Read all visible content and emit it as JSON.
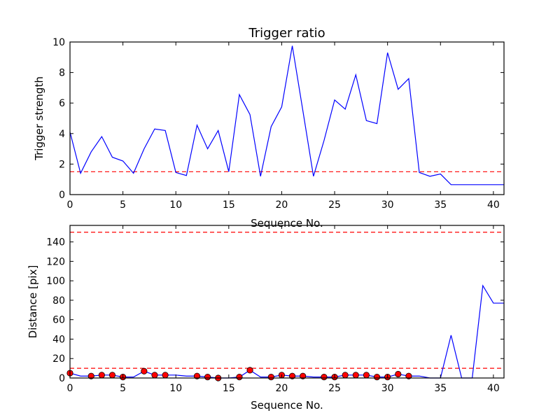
{
  "chart_data": [
    {
      "type": "line",
      "title": "Trigger ratio",
      "xlabel": "Sequence No.",
      "ylabel": "Trigger strength",
      "xlim": [
        0,
        41
      ],
      "ylim": [
        0,
        10
      ],
      "xticks": [
        0,
        5,
        10,
        15,
        20,
        25,
        30,
        35,
        40
      ],
      "yticks": [
        0,
        2,
        4,
        6,
        8,
        10
      ],
      "grid": false,
      "threshold_lines": [
        {
          "y": 1.5,
          "color": "#ff0000",
          "style": "dashed"
        }
      ],
      "series": [
        {
          "color": "#0000ff",
          "x": [
            0,
            1,
            2,
            3,
            4,
            5,
            6,
            7,
            8,
            9,
            10,
            11,
            12,
            13,
            14,
            15,
            16,
            17,
            18,
            19,
            20,
            21,
            22,
            23,
            24,
            25,
            26,
            27,
            28,
            29,
            30,
            31,
            32,
            33,
            34,
            35,
            36,
            37,
            38,
            39,
            40,
            41
          ],
          "values": [
            4.1,
            1.4,
            2.8,
            3.8,
            2.45,
            2.2,
            1.4,
            3.0,
            4.3,
            4.2,
            1.45,
            1.25,
            4.55,
            3.0,
            4.2,
            1.5,
            6.55,
            5.25,
            1.2,
            4.45,
            5.75,
            9.75,
            5.5,
            1.2,
            3.55,
            6.2,
            5.6,
            7.85,
            4.85,
            4.65,
            9.3,
            6.9,
            7.6,
            1.45,
            1.2,
            1.35,
            0.65,
            0.65,
            0.65,
            0.65,
            0.65,
            0.65
          ]
        }
      ]
    },
    {
      "type": "line",
      "title": "",
      "xlabel": "Sequence No.",
      "ylabel": "Distance [pix]",
      "xlim": [
        0,
        41
      ],
      "ylim": [
        0,
        157
      ],
      "xticks": [
        0,
        5,
        10,
        15,
        20,
        25,
        30,
        35,
        40
      ],
      "yticks": [
        0,
        20,
        40,
        60,
        80,
        100,
        120,
        140
      ],
      "grid": false,
      "threshold_lines": [
        {
          "y": 150,
          "color": "#ff0000",
          "style": "dashed"
        },
        {
          "y": 10,
          "color": "#ff0000",
          "style": "dashed"
        }
      ],
      "series": [
        {
          "color": "#0000ff",
          "x": [
            0,
            1,
            2,
            3,
            4,
            5,
            6,
            7,
            8,
            9,
            10,
            11,
            12,
            13,
            14,
            15,
            16,
            17,
            18,
            19,
            20,
            21,
            22,
            23,
            24,
            25,
            26,
            27,
            28,
            29,
            30,
            31,
            32,
            33,
            34,
            35,
            36,
            37,
            38,
            39,
            40,
            41
          ],
          "values": [
            5,
            2,
            2,
            3,
            3,
            1,
            1,
            7,
            3,
            3,
            3,
            2,
            2,
            1,
            0,
            0,
            1,
            8,
            1,
            1,
            3,
            2,
            2,
            1,
            1,
            1,
            3,
            3,
            3,
            1,
            1,
            4,
            2,
            2,
            0,
            0,
            44,
            0,
            0,
            95,
            77,
            77
          ]
        }
      ],
      "markers": {
        "color": "#ff0000",
        "x": [
          0,
          2,
          3,
          4,
          5,
          7,
          8,
          9,
          12,
          13,
          14,
          16,
          17,
          19,
          20,
          21,
          22,
          24,
          25,
          26,
          27,
          28,
          29,
          30,
          31,
          32
        ],
        "y": [
          5,
          2,
          3,
          3,
          1,
          7,
          3,
          3,
          2,
          1,
          0,
          1,
          8,
          1,
          3,
          2,
          2,
          1,
          1,
          3,
          3,
          3,
          1,
          1,
          4,
          2
        ]
      }
    }
  ]
}
